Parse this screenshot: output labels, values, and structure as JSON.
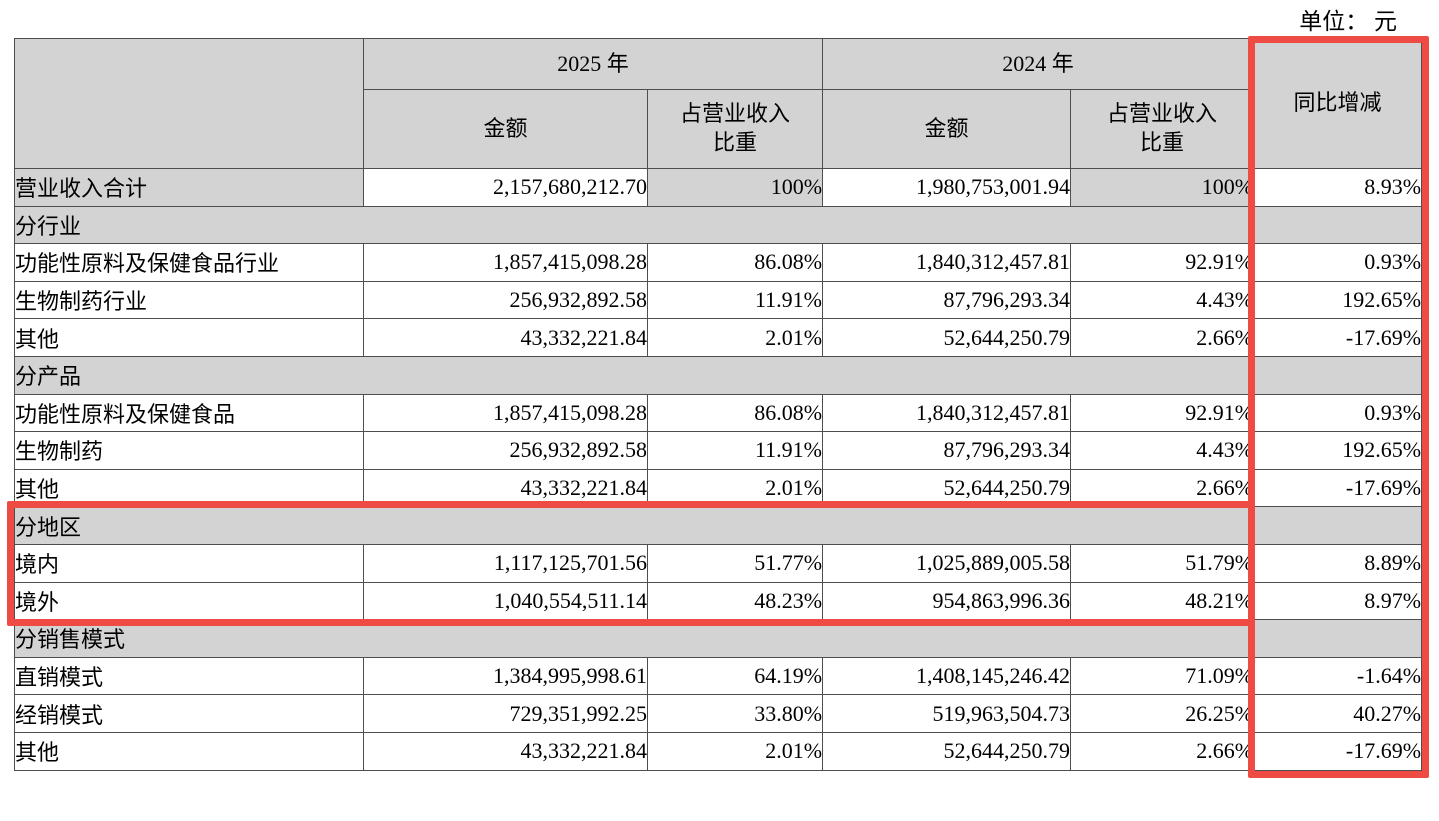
{
  "unit_label": "单位： 元",
  "colors": {
    "highlight_red": "#ef4b45",
    "header_gray": "#d3d3d3",
    "grid_line": "#4e4e4e"
  },
  "table": {
    "headers": {
      "year_2025": "2025 年",
      "year_2024": "2024 年",
      "amount": "金额",
      "share": "占营业收入\n比重",
      "yoy": "同比增减"
    },
    "region_highlight_rows": [
      9,
      11
    ],
    "rows": [
      {
        "type": "total",
        "label": "营业收入合计",
        "a2025": "2,157,680,212.70",
        "p2025": "100%",
        "a2024": "1,980,753,001.94",
        "p2024": "100%",
        "yoy": "8.93%"
      },
      {
        "type": "section",
        "label": "分行业"
      },
      {
        "type": "data",
        "label": "功能性原料及保健食品行业",
        "a2025": "1,857,415,098.28",
        "p2025": "86.08%",
        "a2024": "1,840,312,457.81",
        "p2024": "92.91%",
        "yoy": "0.93%"
      },
      {
        "type": "data",
        "label": "生物制药行业",
        "a2025": "256,932,892.58",
        "p2025": "11.91%",
        "a2024": "87,796,293.34",
        "p2024": "4.43%",
        "yoy": "192.65%"
      },
      {
        "type": "data",
        "label": "其他",
        "a2025": "43,332,221.84",
        "p2025": "2.01%",
        "a2024": "52,644,250.79",
        "p2024": "2.66%",
        "yoy": "-17.69%"
      },
      {
        "type": "section",
        "label": "分产品"
      },
      {
        "type": "data",
        "label": "功能性原料及保健食品",
        "a2025": "1,857,415,098.28",
        "p2025": "86.08%",
        "a2024": "1,840,312,457.81",
        "p2024": "92.91%",
        "yoy": "0.93%"
      },
      {
        "type": "data",
        "label": "生物制药",
        "a2025": "256,932,892.58",
        "p2025": "11.91%",
        "a2024": "87,796,293.34",
        "p2024": "4.43%",
        "yoy": "192.65%"
      },
      {
        "type": "data",
        "label": "其他",
        "a2025": "43,332,221.84",
        "p2025": "2.01%",
        "a2024": "52,644,250.79",
        "p2024": "2.66%",
        "yoy": "-17.69%"
      },
      {
        "type": "section",
        "label": "分地区"
      },
      {
        "type": "data",
        "label": "境内",
        "a2025": "1,117,125,701.56",
        "p2025": "51.77%",
        "a2024": "1,025,889,005.58",
        "p2024": "51.79%",
        "yoy": "8.89%"
      },
      {
        "type": "data",
        "label": "境外",
        "a2025": "1,040,554,511.14",
        "p2025": "48.23%",
        "a2024": "954,863,996.36",
        "p2024": "48.21%",
        "yoy": "8.97%"
      },
      {
        "type": "section",
        "label": "分销售模式"
      },
      {
        "type": "data",
        "label": "直销模式",
        "a2025": "1,384,995,998.61",
        "p2025": "64.19%",
        "a2024": "1,408,145,246.42",
        "p2024": "71.09%",
        "yoy": "-1.64%"
      },
      {
        "type": "data",
        "label": "经销模式",
        "a2025": "729,351,992.25",
        "p2025": "33.80%",
        "a2024": "519,963,504.73",
        "p2024": "26.25%",
        "yoy": "40.27%"
      },
      {
        "type": "data",
        "label": "其他",
        "a2025": "43,332,221.84",
        "p2025": "2.01%",
        "a2024": "52,644,250.79",
        "p2024": "2.66%",
        "yoy": "-17.69%"
      }
    ]
  }
}
